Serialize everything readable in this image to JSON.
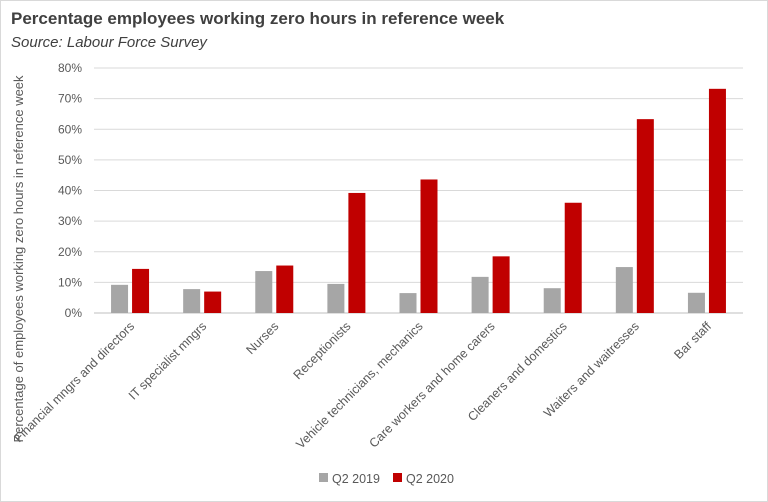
{
  "header": {
    "title": "Percentage employees working zero hours in reference week",
    "subtitle": "Source: Labour Force Survey"
  },
  "chart_data": {
    "type": "bar",
    "title": "Percentage employees working zero hours in reference week",
    "subtitle": "Source: Labour Force Survey",
    "xlabel": "",
    "ylabel": "Percentage of employees working zero hours in reference week",
    "categories": [
      "Financial mngrs and directors",
      "IT specialist mngrs",
      "Nurses",
      "Receptionists",
      "Vehicle technicians, mechanics",
      "Care workers and home carers",
      "Cleaners and domestics",
      "Waiters and waitresses",
      "Bar staff"
    ],
    "series": [
      {
        "name": "Q2 2019",
        "color": "#a6a6a6",
        "values": [
          9.2,
          7.8,
          13.7,
          9.5,
          6.5,
          11.8,
          8.1,
          15.0,
          6.6
        ]
      },
      {
        "name": "Q2 2020",
        "color": "#c00000",
        "values": [
          14.4,
          7.0,
          15.5,
          39.2,
          43.6,
          18.5,
          36.0,
          63.3,
          73.2
        ]
      }
    ],
    "ylim": [
      0,
      80
    ],
    "yticks": [
      "0%",
      "10%",
      "20%",
      "30%",
      "40%",
      "50%",
      "60%",
      "70%",
      "80%"
    ],
    "grid": true,
    "legend_position": "bottom"
  }
}
